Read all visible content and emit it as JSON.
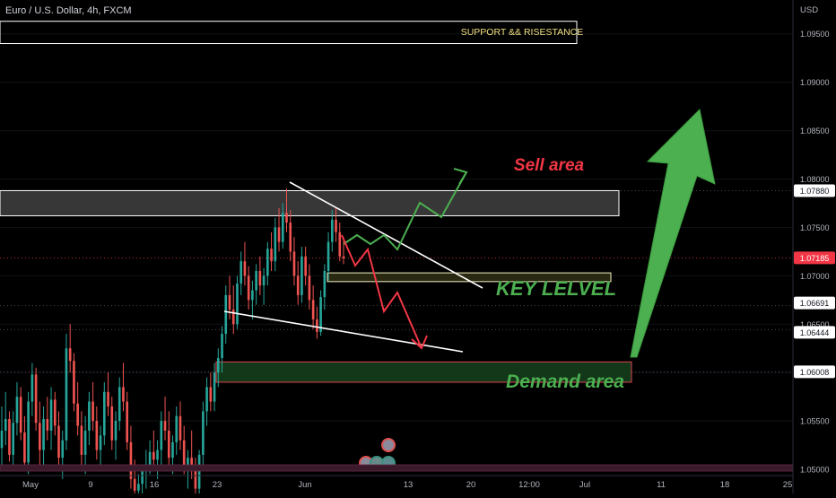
{
  "header": {
    "symbol_title": "Euro / U.S. Dollar, 4h, FXCM"
  },
  "chart_data": {
    "type": "candlestick",
    "currency": "USD",
    "ylim": [
      1.0475,
      1.0985
    ],
    "y_ticks": [
      {
        "value": 1.095,
        "label": "1.09500"
      },
      {
        "value": 1.09,
        "label": "1.09000"
      },
      {
        "value": 1.085,
        "label": "1.08500"
      },
      {
        "value": 1.08,
        "label": "1.08000"
      },
      {
        "value": 1.075,
        "label": "1.07500"
      },
      {
        "value": 1.07,
        "label": "1.07000"
      },
      {
        "value": 1.065,
        "label": "1.06500"
      },
      {
        "value": 1.06,
        "label": "1.06000"
      },
      {
        "value": 1.055,
        "label": "1.05500"
      },
      {
        "value": 1.05,
        "label": "1.05000"
      }
    ],
    "x_ticks": [
      "May",
      "9",
      "16",
      "23",
      "Jun",
      "13",
      "20",
      "12:00",
      "Jul",
      "11",
      "18",
      "25"
    ],
    "price_badges": [
      {
        "value": 1.0788,
        "label": "1.07880",
        "style": "white"
      },
      {
        "value": 1.07185,
        "label": "1.07185",
        "style": "red"
      },
      {
        "value": 1.06691,
        "label": "1.06691",
        "style": "white"
      },
      {
        "value": 1.06444,
        "label": "1.06444",
        "style": "white"
      },
      {
        "value": 1.06008,
        "label": "1.06008",
        "style": "white"
      }
    ],
    "last_price": 1.07185,
    "zones": [
      {
        "name": "support-resistance-box",
        "price_top": 1.0963,
        "price_bottom": 1.094,
        "fill": "none",
        "stroke": "#ffffff"
      },
      {
        "name": "sell-zone",
        "price_top": 1.0788,
        "price_bottom": 1.0762,
        "fill": "#3a3a3a",
        "stroke": "#ffffff"
      },
      {
        "name": "key-level-zone",
        "price_top": 1.0703,
        "price_bottom": 1.0694,
        "fill": "#2b2a12",
        "stroke": "#f0efc0"
      },
      {
        "name": "demand-zone",
        "price_top": 1.0611,
        "price_bottom": 1.059,
        "fill": "#143a1a",
        "stroke": "#e04050"
      }
    ],
    "annotations": [
      {
        "text": "SUPPORT && RISESTANCE",
        "color": "#f0e080"
      },
      {
        "text": "Sell area",
        "color": "#f23645"
      },
      {
        "text": "KEY LELVEL",
        "color": "#4caf50"
      },
      {
        "text": "Demand area",
        "color": "#4caf50"
      }
    ],
    "candles": [
      [
        1.0522,
        1.0565,
        1.0501,
        1.054
      ],
      [
        1.054,
        1.058,
        1.0525,
        1.0552
      ],
      [
        1.0552,
        1.056,
        1.0508,
        1.0515
      ],
      [
        1.0515,
        1.056,
        1.0498,
        1.0548
      ],
      [
        1.0548,
        1.059,
        1.0535,
        1.0575
      ],
      [
        1.0575,
        1.0585,
        1.053,
        1.0538
      ],
      [
        1.0538,
        1.0555,
        1.05,
        1.0507
      ],
      [
        1.0507,
        1.058,
        1.0495,
        1.057
      ],
      [
        1.057,
        1.061,
        1.0555,
        1.0598
      ],
      [
        1.0598,
        1.0605,
        1.054,
        1.0548
      ],
      [
        1.0548,
        1.057,
        1.0505,
        1.052
      ],
      [
        1.052,
        1.0565,
        1.05,
        1.0552
      ],
      [
        1.0552,
        1.0575,
        1.053,
        1.054
      ],
      [
        1.054,
        1.0585,
        1.052,
        1.0572
      ],
      [
        1.0572,
        1.058,
        1.0535,
        1.0545
      ],
      [
        1.0545,
        1.056,
        1.0505,
        1.0512
      ],
      [
        1.0512,
        1.054,
        1.049,
        1.053
      ],
      [
        1.053,
        1.064,
        1.052,
        1.0625
      ],
      [
        1.0625,
        1.065,
        1.06,
        1.0612
      ],
      [
        1.0612,
        1.062,
        1.056,
        1.0568
      ],
      [
        1.0568,
        1.059,
        1.0535,
        1.0545
      ],
      [
        1.0545,
        1.056,
        1.05,
        1.0515
      ],
      [
        1.0515,
        1.0555,
        1.0495,
        1.054
      ],
      [
        1.054,
        1.058,
        1.0525,
        1.057
      ],
      [
        1.057,
        1.059,
        1.054,
        1.055
      ],
      [
        1.055,
        1.0565,
        1.051,
        1.052
      ],
      [
        1.052,
        1.0545,
        1.05,
        1.0535
      ],
      [
        1.0535,
        1.059,
        1.0525,
        1.058
      ],
      [
        1.058,
        1.06,
        1.0555,
        1.0565
      ],
      [
        1.0565,
        1.0575,
        1.052,
        1.053
      ],
      [
        1.053,
        1.056,
        1.051,
        1.055
      ],
      [
        1.055,
        1.0595,
        1.054,
        1.0585
      ],
      [
        1.0585,
        1.061,
        1.056,
        1.057
      ],
      [
        1.057,
        1.058,
        1.052,
        1.0528
      ],
      [
        1.0528,
        1.0545,
        1.048,
        1.049
      ],
      [
        1.049,
        1.051,
        1.0468,
        1.0478
      ],
      [
        1.0478,
        1.0495,
        1.0462,
        1.0485
      ],
      [
        1.0485,
        1.0505,
        1.047,
        1.0498
      ],
      [
        1.0498,
        1.052,
        1.048,
        1.0505
      ],
      [
        1.0505,
        1.053,
        1.0495,
        1.0518
      ],
      [
        1.0518,
        1.054,
        1.05,
        1.051
      ],
      [
        1.051,
        1.053,
        1.049,
        1.052
      ],
      [
        1.052,
        1.056,
        1.0505,
        1.055
      ],
      [
        1.055,
        1.0575,
        1.053,
        1.054
      ],
      [
        1.054,
        1.056,
        1.0505,
        1.0512
      ],
      [
        1.0512,
        1.0535,
        1.0495,
        1.0528
      ],
      [
        1.0528,
        1.0565,
        1.0515,
        1.0555
      ],
      [
        1.0555,
        1.057,
        1.052,
        1.053
      ],
      [
        1.053,
        1.0545,
        1.0495,
        1.0502
      ],
      [
        1.0502,
        1.052,
        1.048,
        1.0512
      ],
      [
        1.0512,
        1.054,
        1.049,
        1.05
      ],
      [
        1.05,
        1.0512,
        1.047,
        1.048
      ],
      [
        1.048,
        1.052,
        1.0472,
        1.0515
      ],
      [
        1.0515,
        1.057,
        1.0505,
        1.056
      ],
      [
        1.056,
        1.0595,
        1.0545,
        1.0585
      ],
      [
        1.0585,
        1.06,
        1.056,
        1.057
      ],
      [
        1.057,
        1.061,
        1.056,
        1.06
      ],
      [
        1.06,
        1.0625,
        1.0585,
        1.0615
      ],
      [
        1.0615,
        1.0648,
        1.06,
        1.064
      ],
      [
        1.064,
        1.069,
        1.063,
        1.068
      ],
      [
        1.068,
        1.07,
        1.0655,
        1.0665
      ],
      [
        1.0665,
        1.069,
        1.064,
        1.065
      ],
      [
        1.065,
        1.07,
        1.0645,
        1.0692
      ],
      [
        1.0692,
        1.0725,
        1.068,
        1.0715
      ],
      [
        1.0715,
        1.0735,
        1.069,
        1.07
      ],
      [
        1.07,
        1.071,
        1.0665,
        1.0675
      ],
      [
        1.0675,
        1.0695,
        1.0655,
        1.0685
      ],
      [
        1.0685,
        1.0712,
        1.067,
        1.0705
      ],
      [
        1.0705,
        1.072,
        1.068,
        1.069
      ],
      [
        1.069,
        1.0708,
        1.067,
        1.07
      ],
      [
        1.07,
        1.0735,
        1.069,
        1.0728
      ],
      [
        1.0728,
        1.0745,
        1.0705,
        1.0715
      ],
      [
        1.0715,
        1.076,
        1.0705,
        1.075
      ],
      [
        1.075,
        1.077,
        1.0725,
        1.0735
      ],
      [
        1.0735,
        1.0775,
        1.0728,
        1.0765
      ],
      [
        1.0765,
        1.079,
        1.0745,
        1.0755
      ],
      [
        1.0755,
        1.0768,
        1.0715,
        1.0725
      ],
      [
        1.0725,
        1.074,
        1.069,
        1.07
      ],
      [
        1.07,
        1.0715,
        1.067,
        1.068
      ],
      [
        1.068,
        1.073,
        1.0672,
        1.072
      ],
      [
        1.072,
        1.073,
        1.069,
        1.07
      ],
      [
        1.07,
        1.0712,
        1.0665,
        1.0675
      ],
      [
        1.0675,
        1.069,
        1.0645,
        1.0655
      ],
      [
        1.0655,
        1.0668,
        1.0635,
        1.0642
      ],
      [
        1.0642,
        1.0685,
        1.0638,
        1.0678
      ],
      [
        1.0678,
        1.0712,
        1.0665,
        1.0705
      ],
      [
        1.0705,
        1.0745,
        1.0695,
        1.0735
      ],
      [
        1.0735,
        1.0768,
        1.0725,
        1.0758
      ],
      [
        1.0758,
        1.077,
        1.0735,
        1.0745
      ],
      [
        1.0745,
        1.0755,
        1.0715,
        1.072
      ],
      [
        1.072,
        1.074,
        1.0712,
        1.0718
      ]
    ]
  }
}
